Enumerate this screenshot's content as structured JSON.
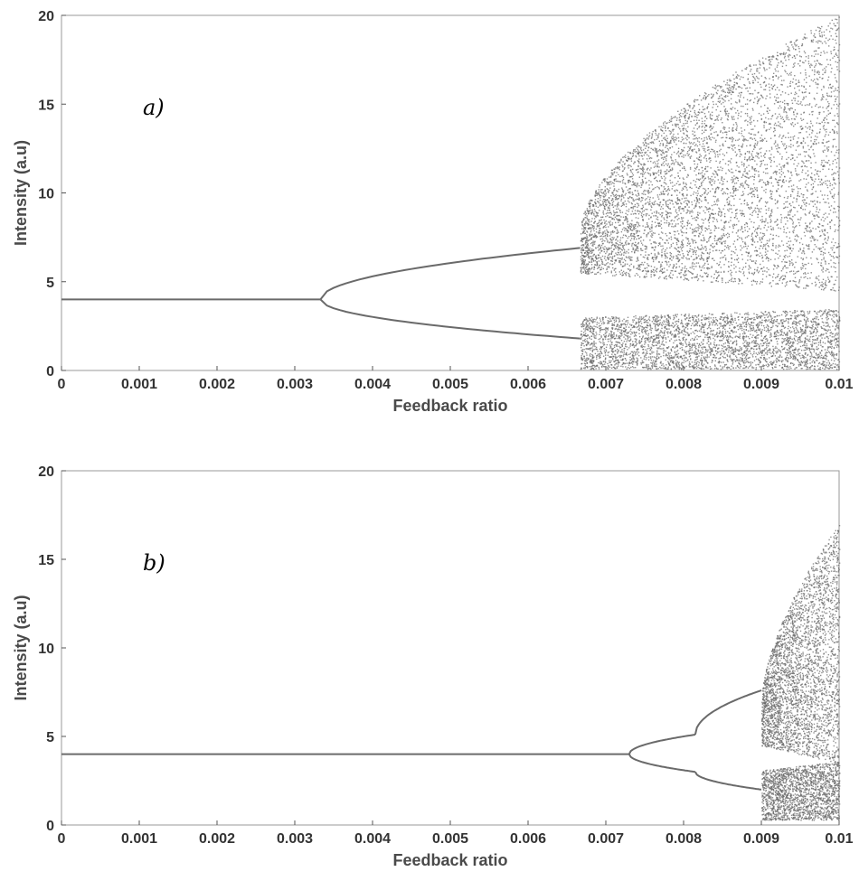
{
  "chart_data": [
    {
      "type": "scatter",
      "panel_label": "a)",
      "xlabel": "Feedback ratio",
      "ylabel": "Intensity (a.u)",
      "xlim": [
        0,
        0.01
      ],
      "ylim": [
        0,
        20
      ],
      "x_ticks": [
        "0",
        "0.001",
        "0.002",
        "0.003",
        "0.004",
        "0.005",
        "0.006",
        "0.007",
        "0.008",
        "0.009",
        "0.01"
      ],
      "y_ticks": [
        "0",
        "5",
        "10",
        "15",
        "20"
      ],
      "grid": false,
      "point_color": "#6a6a6a",
      "series": [
        {
          "regime": "steady",
          "x_range": [
            0,
            0.00333
          ],
          "y": 4.0
        },
        {
          "regime": "period-2",
          "x_range": [
            0.00333,
            0.00667
          ],
          "upper_end": 6.9,
          "lower_end": 1.8
        },
        {
          "regime": "chaotic",
          "x_range": [
            0.00667,
            0.01
          ],
          "upper_band": [
            5.5,
            20
          ],
          "lower_band": [
            0.1,
            3.5
          ]
        }
      ]
    },
    {
      "type": "scatter",
      "panel_label": "b)",
      "xlabel": "Feedback ratio",
      "ylabel": "Intensity (a.u)",
      "xlim": [
        0,
        0.01
      ],
      "ylim": [
        0,
        20
      ],
      "x_ticks": [
        "0",
        "0.001",
        "0.002",
        "0.003",
        "0.004",
        "0.005",
        "0.006",
        "0.007",
        "0.008",
        "0.009",
        "0.01"
      ],
      "y_ticks": [
        "0",
        "5",
        "10",
        "15",
        "20"
      ],
      "grid": false,
      "point_color": "#6a6a6a",
      "series": [
        {
          "regime": "steady",
          "x_range": [
            0,
            0.0073
          ],
          "y": 4.0
        },
        {
          "regime": "period-2",
          "x_range": [
            0.0073,
            0.00815
          ],
          "upper_end": 5.1,
          "lower_end": 3.0
        },
        {
          "regime": "period-2",
          "x_range": [
            0.00815,
            0.009
          ],
          "upper_end": 7.6,
          "lower_end": 2.0
        },
        {
          "regime": "chaotic",
          "x_range": [
            0.009,
            0.01
          ],
          "upper_band": [
            4.5,
            17
          ],
          "lower_band": [
            0.3,
            3.6
          ]
        }
      ]
    }
  ]
}
